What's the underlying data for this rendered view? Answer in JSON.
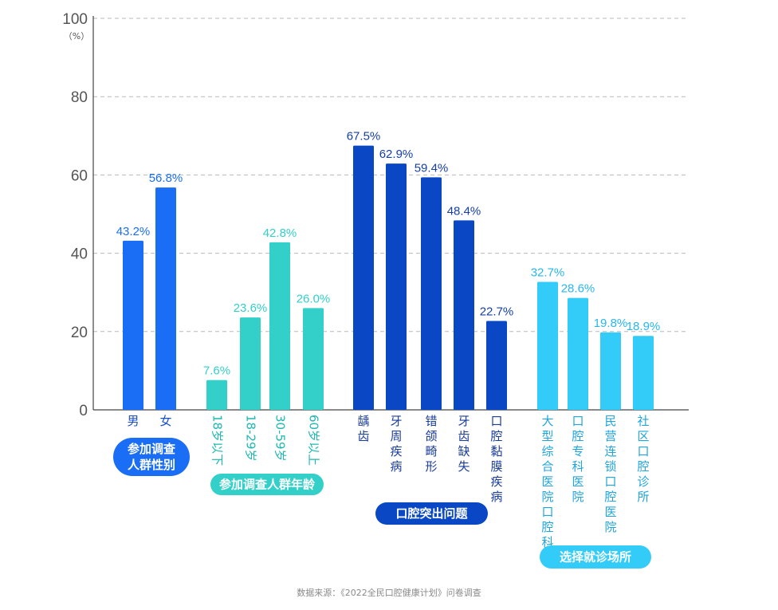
{
  "chart_data": {
    "type": "bar",
    "y_ticks": [
      "0",
      "20",
      "40",
      "60",
      "80",
      "100"
    ],
    "y_unit": "（%）",
    "ylim": [
      0,
      100
    ],
    "grid": true,
    "groups": [
      {
        "label": "参加调查人群性别",
        "label_lines": [
          "参加调查",
          "人群性别"
        ],
        "color": "#1a6ef5",
        "label_color": "#1a6ef5",
        "categories": [
          "男",
          "女"
        ],
        "values": [
          43.2,
          56.8
        ],
        "value_labels": [
          "43.2%",
          "56.8%"
        ],
        "cat_color": "#1a4fc9",
        "cat_rotated": false
      },
      {
        "label": "参加调查人群年龄",
        "label_lines": [
          "参加调查人群年龄"
        ],
        "color": "#33cfc9",
        "label_color": "#33cfc9",
        "categories": [
          "18岁以下",
          "18-29岁",
          "30-59岁",
          "60岁以上"
        ],
        "values": [
          7.6,
          23.6,
          42.8,
          26.0
        ],
        "value_labels": [
          "7.6%",
          "23.6%",
          "42.8%",
          "26.0%"
        ],
        "cat_color": "#20b8b2",
        "cat_rotated": true
      },
      {
        "label": "口腔突出问题",
        "label_lines": [
          "口腔突出问题"
        ],
        "color": "#0a47c4",
        "label_color": "#1640a8",
        "categories": [
          "龋齿",
          "牙周疾病",
          "错颌畸形",
          "牙齿缺失",
          "口腔黏膜疾病"
        ],
        "values": [
          67.5,
          62.9,
          59.4,
          48.4,
          22.7
        ],
        "value_labels": [
          "67.5%",
          "62.9%",
          "59.4%",
          "48.4%",
          "22.7%"
        ],
        "cat_color": "#1a3c9a",
        "cat_rotated": false
      },
      {
        "label": "选择就诊场所",
        "label_lines": [
          "选择就诊场所"
        ],
        "color": "#33ccf8",
        "label_color": "#28b6ee",
        "categories": [
          "大型综合医院口腔科",
          "口腔专科医院",
          "民营连锁口腔医院",
          "社区口腔诊所"
        ],
        "values": [
          32.7,
          28.6,
          19.8,
          18.9
        ],
        "value_labels": [
          "32.7%",
          "28.6%",
          "19.8%",
          "18.9%"
        ],
        "cat_color": "#1fa5dc",
        "cat_rotated": false
      }
    ]
  },
  "source_text": "数据来源：《2022全民口腔健康计划》问卷调查"
}
